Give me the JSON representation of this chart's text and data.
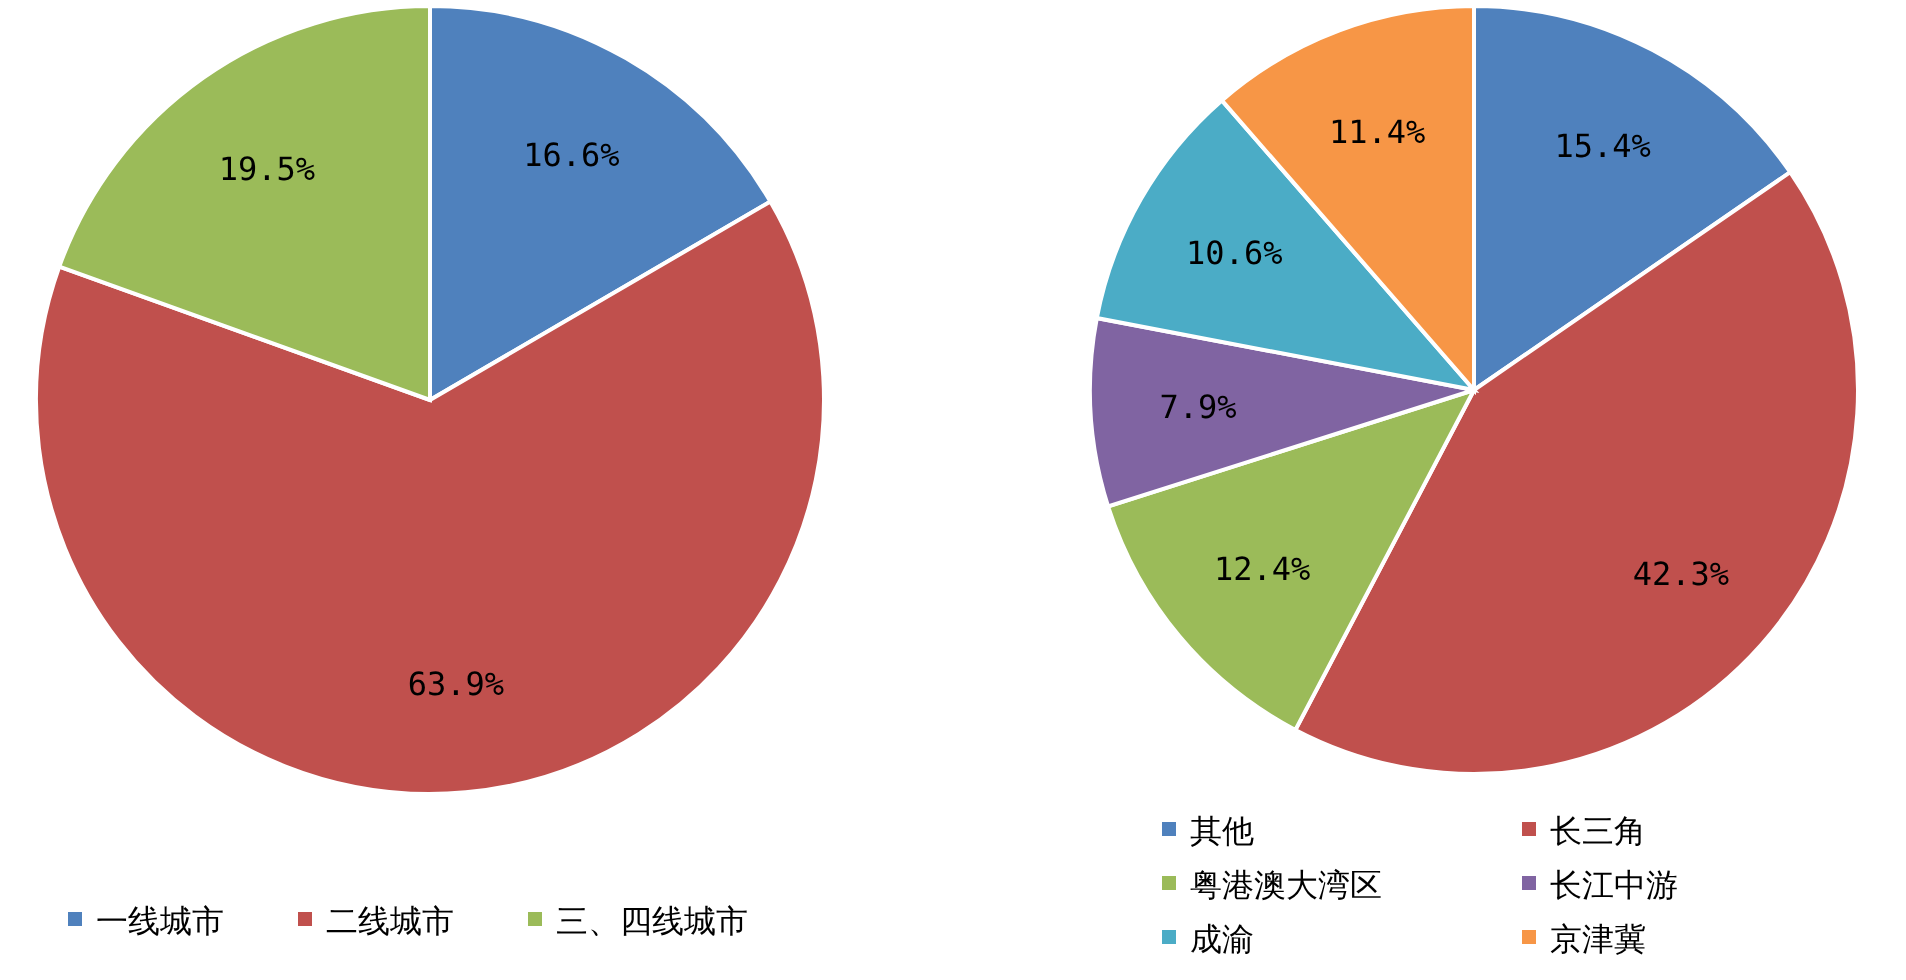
{
  "chart_data": [
    {
      "type": "pie",
      "categories": [
        "一线城市",
        "二线城市",
        "三、四线城市"
      ],
      "values": [
        16.6,
        63.9,
        19.5
      ],
      "value_labels": [
        "16.6%",
        "63.9%",
        "19.5%"
      ],
      "colors": [
        "#4f81bd",
        "#c0504d",
        "#9bbb59"
      ],
      "legend": "bottom"
    },
    {
      "type": "pie",
      "categories": [
        "其他",
        "长三角",
        "粤港澳大湾区",
        "长江中游",
        "成渝",
        "京津冀"
      ],
      "values": [
        15.4,
        42.3,
        12.4,
        7.9,
        10.6,
        11.4
      ],
      "value_labels": [
        "15.4%",
        "42.3%",
        "12.4%",
        "7.9%",
        "10.6%",
        "11.4%"
      ],
      "colors": [
        "#4f81bd",
        "#c0504d",
        "#9bbb59",
        "#8064a2",
        "#4bacc6",
        "#f79646"
      ],
      "legend": "bottom"
    }
  ]
}
